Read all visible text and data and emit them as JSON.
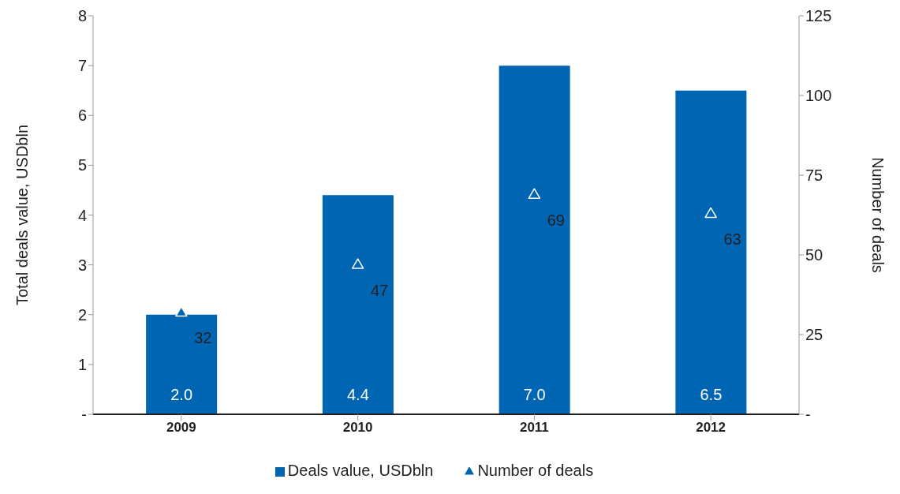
{
  "chart_data": {
    "type": "bar",
    "categories": [
      "2009",
      "2010",
      "2011",
      "2012"
    ],
    "ylabel": "Total deals value, USDbln",
    "y2label": "Number of deals",
    "series": [
      {
        "name": "Deals value, USDbln",
        "color": "#0066b3",
        "values": [
          2.0,
          4.4,
          7.0,
          6.5
        ],
        "value_labels": [
          "2.0",
          "4.4",
          "7.0",
          "6.5"
        ]
      },
      {
        "name": "Number of deals",
        "type": "scatter",
        "axis": "y2",
        "marker": "triangle",
        "color": "#0066b3",
        "values": [
          32,
          47,
          69,
          63
        ],
        "value_labels": [
          "32",
          "47",
          "69",
          "63"
        ]
      }
    ],
    "ylim": [
      0,
      8
    ],
    "yticks": [
      {
        "value": 0,
        "label": "-"
      },
      1,
      2,
      3,
      4,
      5,
      6,
      7,
      8
    ],
    "y2lim": [
      0,
      125
    ],
    "y2ticks": [
      {
        "value": 0,
        "label": "-"
      },
      25,
      50,
      75,
      100,
      125
    ],
    "grid": false,
    "legend": "bottom"
  }
}
